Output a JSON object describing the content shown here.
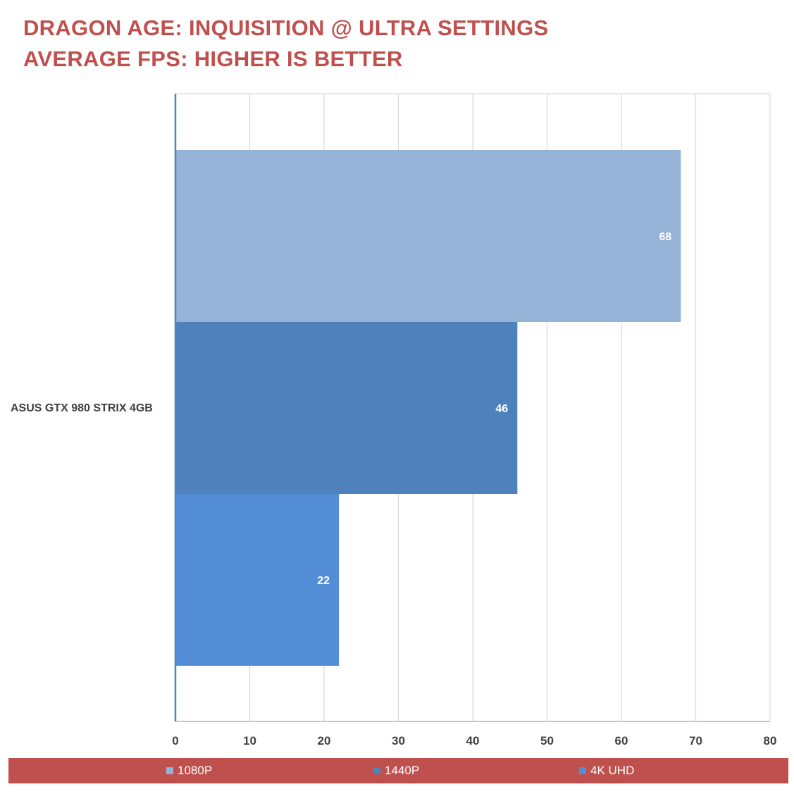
{
  "title_line_1": "DRAGON AGE: INQUISITION @ ULTRA SETTINGS",
  "title_line_2": "AVERAGE FPS: HIGHER IS BETTER",
  "colors": {
    "title": "#c0504d",
    "legend_background": "#c0504d",
    "gridline": "#d9d9d9",
    "axis": "#4f81bd"
  },
  "chart_data": {
    "type": "bar",
    "orientation": "horizontal",
    "categories": [
      "ASUS GTX 980 STRIX 4GB"
    ],
    "series": [
      {
        "name": "1080P",
        "values": [
          68
        ],
        "color": "#95b3d7"
      },
      {
        "name": "1440P",
        "values": [
          46
        ],
        "color": "#4f81bd"
      },
      {
        "name": "4K UHD",
        "values": [
          22
        ],
        "color": "#538dd5"
      }
    ],
    "xlim": [
      0,
      80
    ],
    "xticks": [
      0,
      10,
      20,
      30,
      40,
      50,
      60,
      70,
      80
    ],
    "data_labels": true,
    "grid": true,
    "legend_position": "bottom"
  }
}
